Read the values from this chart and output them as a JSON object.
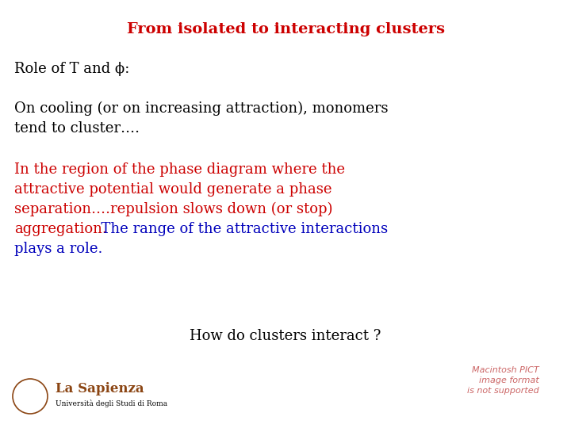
{
  "title": "From isolated to interacting clusters",
  "title_color": "#cc0000",
  "title_fontsize": 14,
  "background_color": "#ffffff",
  "line1": "Role of T and ϕ:",
  "line1_color": "#000000",
  "line1_fontsize": 13,
  "line2a": "On cooling (or on increasing attraction), monomers",
  "line2b": "tend to cluster….",
  "line2_color": "#000000",
  "line2_fontsize": 13,
  "red_lines": [
    "In the region of the phase diagram where the",
    "attractive potential would generate a phase",
    "separation….repulsion slows down (or stop)",
    "aggregation."
  ],
  "red_color": "#cc0000",
  "blue_line_cont": "  The range of the attractive interactions",
  "blue_line2": "plays a role.",
  "blue_color": "#0000bb",
  "line3_fontsize": 13,
  "line4": "How do clusters interact ?",
  "line4_color": "#000000",
  "line4_fontsize": 13,
  "footer_text": "Macintosh PICT\nimage format\nis not supported",
  "footer_color": "#cc6666",
  "footer_fontsize": 8,
  "sapienza_name": "La Sapienza",
  "sapienza_sub": "Università degli Studi di Roma",
  "sapienza_color": "#8B4513"
}
